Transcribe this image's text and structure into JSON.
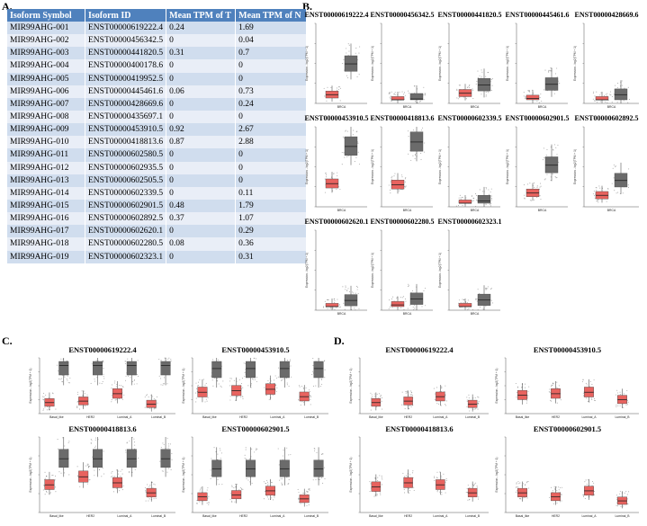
{
  "panels": {
    "a": "A.",
    "b": "B.",
    "c": "C.",
    "d": "D."
  },
  "table": {
    "headers": [
      "Isoform Symbol",
      "Isoform ID",
      "Mean TPM of T",
      "Mean TPM of N"
    ],
    "rows": [
      [
        "MIR99AHG-001",
        "ENST00000619222.4",
        "0.24",
        "1.69"
      ],
      [
        "MIR99AHG-002",
        "ENST00000456342.5",
        "0",
        "0.04"
      ],
      [
        "MIR99AHG-003",
        "ENST00000441820.5",
        "0.31",
        "0.7"
      ],
      [
        "MIR99AHG-004",
        "ENST00000400178.6",
        "0",
        "0"
      ],
      [
        "MIR99AHG-005",
        "ENST00000419952.5",
        "0",
        "0"
      ],
      [
        "MIR99AHG-006",
        "ENST00000445461.6",
        "0.06",
        "0.73"
      ],
      [
        "MIR99AHG-007",
        "ENST00000428669.6",
        "0",
        "0.24"
      ],
      [
        "MIR99AHG-008",
        "ENST00000435697.1",
        "0",
        "0"
      ],
      [
        "MIR99AHG-009",
        "ENST00000453910.5",
        "0.92",
        "2.67"
      ],
      [
        "MIR99AHG-010",
        "ENST00000418813.6",
        "0.87",
        "2.88"
      ],
      [
        "MIR99AHG-011",
        "ENST00000602580.5",
        "0",
        "0"
      ],
      [
        "MIR99AHG-012",
        "ENST00000602935.5",
        "0",
        "0"
      ],
      [
        "MIR99AHG-013",
        "ENST00000602505.5",
        "0",
        "0"
      ],
      [
        "MIR99AHG-014",
        "ENST00000602339.5",
        "0",
        "0.11"
      ],
      [
        "MIR99AHG-015",
        "ENST00000602901.5",
        "0.48",
        "1.79"
      ],
      [
        "MIR99AHG-016",
        "ENST00000602892.5",
        "0.37",
        "1.07"
      ],
      [
        "MIR99AHG-017",
        "ENST00000602620.1",
        "0",
        "0.29"
      ],
      [
        "MIR99AHG-018",
        "ENST00000602280.5",
        "0.08",
        "0.36"
      ],
      [
        "MIR99AHG-019",
        "ENST00000602323.1",
        "0",
        "0.31"
      ]
    ]
  },
  "colors": {
    "tumor": "#e8635f",
    "normal": "#6b6b6b",
    "header": "#4f81bd"
  },
  "chart_data": [
    {
      "type": "box",
      "panel": "B",
      "title": "ENST00000619222.4",
      "categories": [
        "BRCA"
      ],
      "ylabel": "Expression - log2(TPM + 1)",
      "series": [
        {
          "values": [
            0.24
          ]
        },
        {
          "values": [
            1.69
          ]
        }
      ]
    },
    {
      "type": "box",
      "panel": "B",
      "title": "ENST00000456342.5",
      "categories": [
        "BRCA"
      ],
      "ylabel": "Expression - log2(TPM + 1)",
      "series": [
        {
          "values": [
            0
          ]
        },
        {
          "values": [
            0.04
          ]
        }
      ]
    },
    {
      "type": "box",
      "panel": "B",
      "title": "ENST00000441820.5",
      "categories": [
        "BRCA"
      ],
      "ylabel": "Expression - log2(TPM + 1)",
      "series": [
        {
          "values": [
            0.31
          ]
        },
        {
          "values": [
            0.7
          ]
        }
      ]
    },
    {
      "type": "box",
      "panel": "B",
      "title": "ENST00000445461.6",
      "categories": [
        "BRCA"
      ],
      "ylabel": "Expression - log2(TPM + 1)",
      "series": [
        {
          "values": [
            0.06
          ]
        },
        {
          "values": [
            0.73
          ]
        }
      ]
    },
    {
      "type": "box",
      "panel": "B",
      "title": "ENST00000428669.6",
      "categories": [
        "BRCA"
      ],
      "ylabel": "Expression - log2(TPM + 1)",
      "series": [
        {
          "values": [
            0
          ]
        },
        {
          "values": [
            0.24
          ]
        }
      ]
    },
    {
      "type": "box",
      "panel": "B",
      "title": "ENST00000453910.5",
      "categories": [
        "BRCA"
      ],
      "ylabel": "Expression - log2(TPM + 1)",
      "series": [
        {
          "values": [
            0.92
          ]
        },
        {
          "values": [
            2.67
          ]
        }
      ]
    },
    {
      "type": "box",
      "panel": "B",
      "title": "ENST00000418813.6",
      "categories": [
        "BRCA"
      ],
      "ylabel": "Expression - log2(TPM + 1)",
      "series": [
        {
          "values": [
            0.87
          ]
        },
        {
          "values": [
            2.88
          ]
        }
      ]
    },
    {
      "type": "box",
      "panel": "B",
      "title": "ENST00000602339.5",
      "categories": [
        "BRCA"
      ],
      "ylabel": "Expression - log2(TPM + 1)",
      "series": [
        {
          "values": [
            0
          ]
        },
        {
          "values": [
            0.11
          ]
        }
      ]
    },
    {
      "type": "box",
      "panel": "B",
      "title": "ENST00000602901.5",
      "categories": [
        "BRCA"
      ],
      "ylabel": "Expression - log2(TPM + 1)",
      "series": [
        {
          "values": [
            0.48
          ]
        },
        {
          "values": [
            1.79
          ]
        }
      ]
    },
    {
      "type": "box",
      "panel": "B",
      "title": "ENST00000602892.5",
      "categories": [
        "BRCA"
      ],
      "ylabel": "Expression - log2(TPM + 1)",
      "series": [
        {
          "values": [
            0.37
          ]
        },
        {
          "values": [
            1.07
          ]
        }
      ]
    },
    {
      "type": "box",
      "panel": "B",
      "title": "ENST00000602620.1",
      "categories": [
        "BRCA"
      ],
      "ylabel": "Expression - log2(TPM + 1)",
      "series": [
        {
          "values": [
            0
          ]
        },
        {
          "values": [
            0.29
          ]
        }
      ]
    },
    {
      "type": "box",
      "panel": "B",
      "title": "ENST00000602280.5",
      "categories": [
        "BRCA"
      ],
      "ylabel": "Expression - log2(TPM + 1)",
      "series": [
        {
          "values": [
            0.08
          ]
        },
        {
          "values": [
            0.36
          ]
        }
      ]
    },
    {
      "type": "box",
      "panel": "B",
      "title": "ENST00000602323.1",
      "categories": [
        "BRCA"
      ],
      "ylabel": "Expression - log2(TPM + 1)",
      "series": [
        {
          "values": [
            0
          ]
        },
        {
          "values": [
            0.31
          ]
        }
      ]
    },
    {
      "type": "box",
      "panel": "C",
      "title": "ENST00000619222.4",
      "categories": [
        "Basal_like",
        "HER2",
        "Luminal_A",
        "Luminal_B"
      ],
      "ylabel": "Expression - log2(TPM + 1)",
      "series": [
        {
          "values": [
            0.5,
            0.6,
            1.1,
            0.4
          ]
        },
        {
          "values": [
            3.0,
            3.0,
            3.0,
            3.0
          ]
        }
      ]
    },
    {
      "type": "box",
      "panel": "C",
      "title": "ENST00000453910.5",
      "categories": [
        "Basal_like",
        "HER2",
        "Luminal_A",
        "Luminal_B"
      ],
      "ylabel": "Expression - log2(TPM + 1)",
      "series": [
        {
          "values": [
            1.2,
            1.3,
            1.4,
            0.9
          ]
        },
        {
          "values": [
            2.8,
            2.8,
            2.8,
            2.8
          ]
        }
      ]
    },
    {
      "type": "box",
      "panel": "C",
      "title": "ENST00000418813.6",
      "categories": [
        "Basal_like",
        "HER2",
        "Luminal_A",
        "Luminal_B"
      ],
      "ylabel": "Expression - log2(TPM + 1)",
      "series": [
        {
          "values": [
            1.2,
            1.6,
            1.3,
            0.8
          ]
        },
        {
          "values": [
            2.5,
            2.5,
            2.5,
            2.5
          ]
        }
      ]
    },
    {
      "type": "box",
      "panel": "C",
      "title": "ENST00000602901.5",
      "categories": [
        "Basal_like",
        "HER2",
        "Luminal_A",
        "Luminal_B"
      ],
      "ylabel": "Expression - log2(TPM + 1)",
      "series": [
        {
          "values": [
            0.6,
            0.7,
            0.9,
            0.5
          ]
        },
        {
          "values": [
            2.0,
            2.0,
            2.0,
            2.0
          ]
        }
      ]
    },
    {
      "type": "box",
      "panel": "D",
      "title": "ENST00000619222.4",
      "categories": [
        "Basal_like",
        "HER2",
        "Luminal_A",
        "Luminal_B"
      ],
      "ylabel": "Expression - log2(TPM + 1)",
      "series": [
        {
          "values": [
            0.5,
            0.6,
            0.9,
            0.4
          ]
        }
      ]
    },
    {
      "type": "box",
      "panel": "D",
      "title": "ENST00000453910.5",
      "categories": [
        "Basal_like",
        "HER2",
        "Luminal_A",
        "Luminal_B"
      ],
      "ylabel": "Expression - log2(TPM + 1)",
      "series": [
        {
          "values": [
            1.0,
            1.1,
            1.2,
            0.7
          ]
        }
      ]
    },
    {
      "type": "box",
      "panel": "D",
      "title": "ENST00000418813.6",
      "categories": [
        "Basal_like",
        "HER2",
        "Luminal_A",
        "Luminal_B"
      ],
      "ylabel": "Expression - log2(TPM + 1)",
      "series": [
        {
          "values": [
            1.1,
            1.3,
            1.2,
            0.8
          ]
        }
      ]
    },
    {
      "type": "box",
      "panel": "D",
      "title": "ENST00000602901.5",
      "categories": [
        "Basal_like",
        "HER2",
        "Luminal_A",
        "Luminal_B"
      ],
      "ylabel": "Expression - log2(TPM + 1)",
      "series": [
        {
          "values": [
            0.8,
            0.6,
            0.9,
            0.4
          ]
        }
      ]
    }
  ]
}
